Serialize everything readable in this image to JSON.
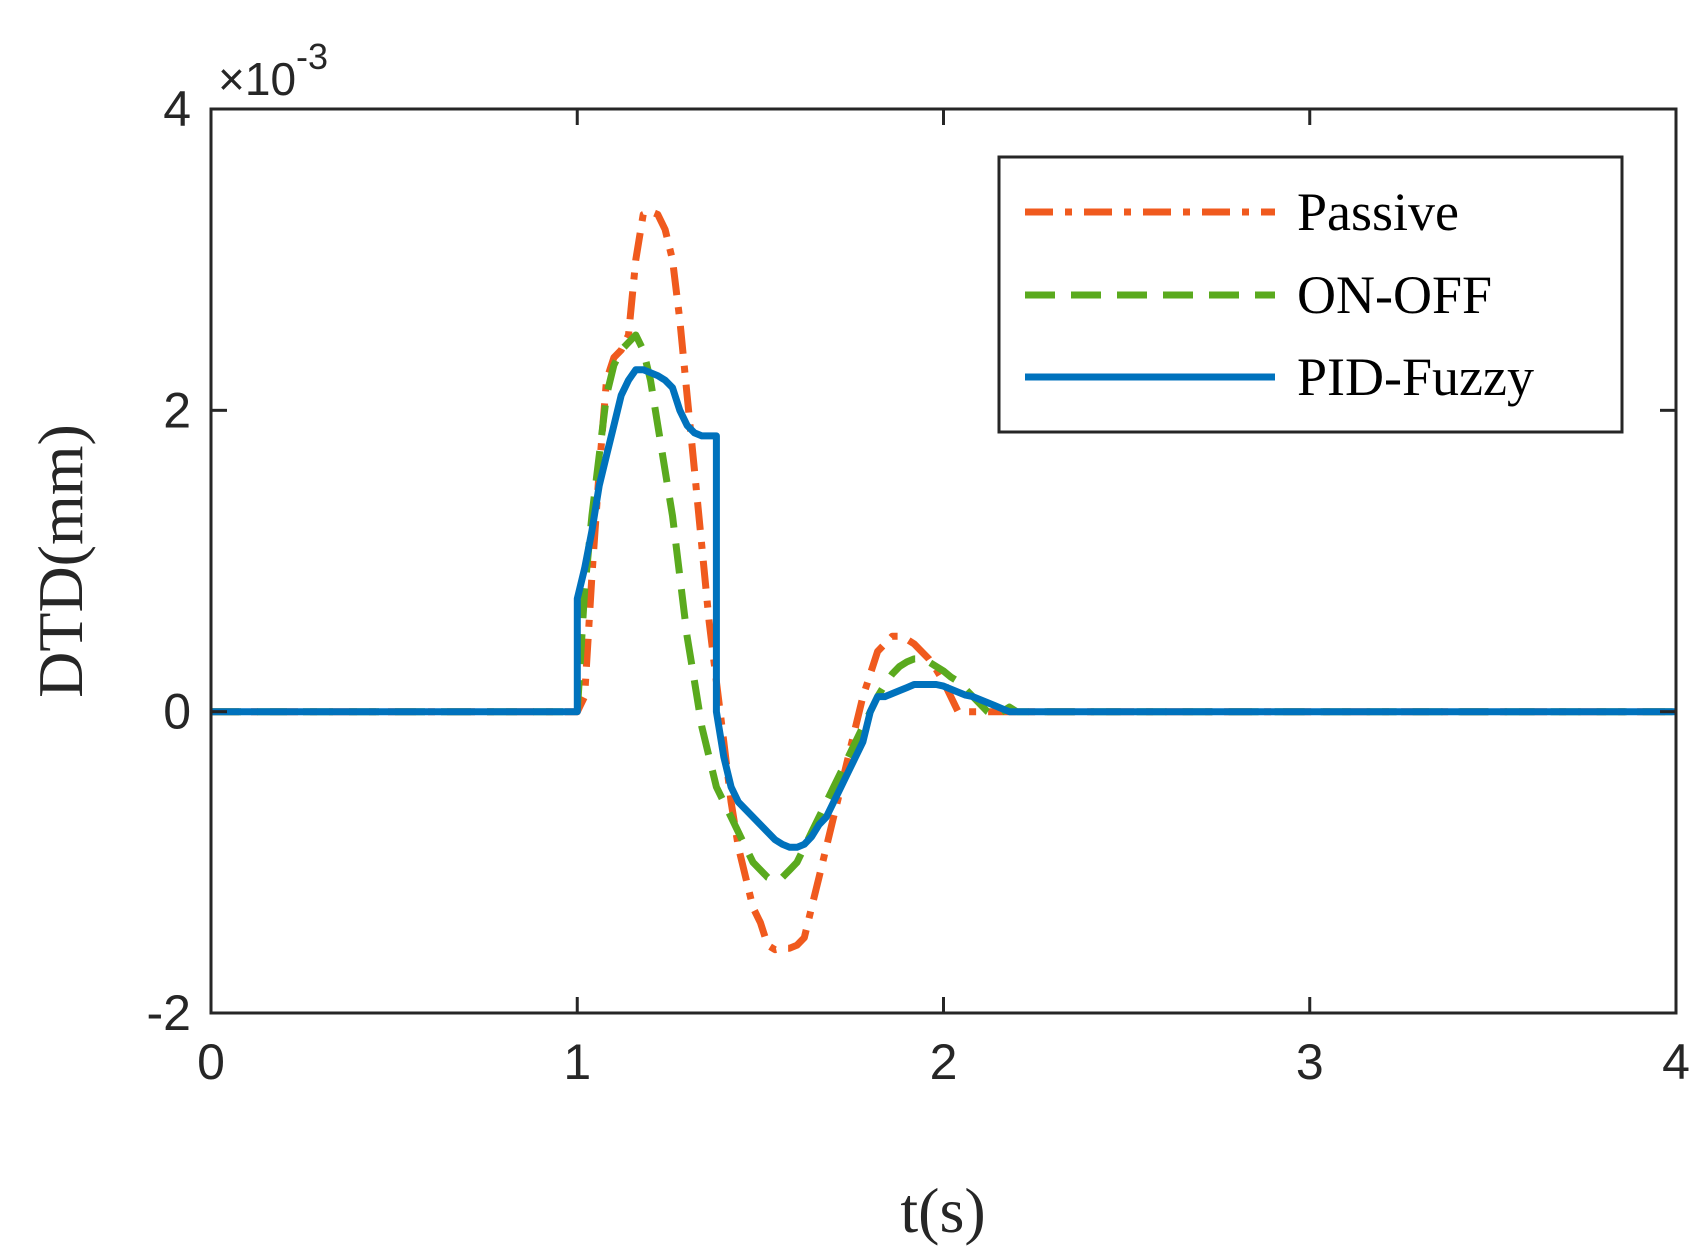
{
  "chart_data": {
    "type": "line",
    "title": "",
    "xlabel": "t(s)",
    "ylabel": "DTD(mm)",
    "xlim": [
      0,
      4
    ],
    "ylim": [
      -2,
      4
    ],
    "xticks": [
      0,
      1,
      2,
      3,
      4
    ],
    "yticks": [
      -2,
      0,
      2,
      4
    ],
    "xtick_labels": [
      "0",
      "1",
      "2",
      "3",
      "4"
    ],
    "ytick_labels": [
      "-2",
      "0",
      "2",
      "4"
    ],
    "y_exponent": {
      "base": "×10",
      "power": "-3"
    },
    "grid": false,
    "legend_position": "top-right",
    "series": [
      {
        "name": "Passive",
        "color": "#f05a1e",
        "style": "dash-dot",
        "x": [
          0,
          1.0,
          1.02,
          1.04,
          1.06,
          1.08,
          1.1,
          1.12,
          1.14,
          1.16,
          1.18,
          1.2,
          1.22,
          1.24,
          1.26,
          1.28,
          1.3,
          1.32,
          1.34,
          1.36,
          1.38,
          1.4,
          1.42,
          1.44,
          1.46,
          1.48,
          1.5,
          1.52,
          1.54,
          1.56,
          1.58,
          1.6,
          1.62,
          1.64,
          1.66,
          1.68,
          1.7,
          1.72,
          1.74,
          1.76,
          1.78,
          1.8,
          1.82,
          1.84,
          1.86,
          1.88,
          1.9,
          1.92,
          1.94,
          1.96,
          1.98,
          2.0,
          2.02,
          2.04,
          2.06,
          2.08,
          2.1,
          2.12,
          2.14,
          2.16,
          2.18,
          2.2,
          2.4,
          2.6,
          2.8,
          3.0,
          3.2,
          3.4,
          3.6,
          3.8,
          4.0
        ],
        "values": [
          0,
          0,
          0.0001,
          0.0009,
          0.0016,
          0.0022,
          0.00235,
          0.0024,
          0.0025,
          0.003,
          0.0033,
          0.00332,
          0.0033,
          0.0032,
          0.003,
          0.0026,
          0.0021,
          0.0016,
          0.0011,
          0.0006,
          0.0002,
          -0.0002,
          -0.0006,
          -0.0009,
          -0.0011,
          -0.0013,
          -0.0014,
          -0.00155,
          -0.00158,
          -0.00157,
          -0.00157,
          -0.00155,
          -0.0015,
          -0.0013,
          -0.0011,
          -0.0009,
          -0.0007,
          -0.0005,
          -0.0003,
          -0.0001,
          0.0001,
          0.00025,
          0.0004,
          0.00045,
          0.0005,
          0.0005,
          0.00048,
          0.00045,
          0.0004,
          0.00035,
          0.00028,
          0.0002,
          0.0001,
          0.0,
          0.0,
          0.0,
          0.0,
          0.0,
          0.0,
          0.0,
          0.0,
          0.0,
          0.0,
          0.0,
          0.0,
          0.0,
          0.0,
          0.0,
          0.0,
          0.0,
          0.0
        ]
      },
      {
        "name": "ON-OFF",
        "color": "#5aaa1e",
        "style": "dashed",
        "x": [
          0,
          1.0,
          1.02,
          1.04,
          1.06,
          1.08,
          1.1,
          1.12,
          1.14,
          1.16,
          1.18,
          1.2,
          1.22,
          1.24,
          1.26,
          1.28,
          1.3,
          1.32,
          1.34,
          1.36,
          1.38,
          1.4,
          1.42,
          1.44,
          1.46,
          1.48,
          1.5,
          1.52,
          1.54,
          1.56,
          1.58,
          1.6,
          1.62,
          1.64,
          1.66,
          1.68,
          1.7,
          1.72,
          1.74,
          1.76,
          1.78,
          1.8,
          1.82,
          1.84,
          1.86,
          1.88,
          1.9,
          1.92,
          1.94,
          1.96,
          1.98,
          2.0,
          2.02,
          2.04,
          2.06,
          2.08,
          2.1,
          2.12,
          2.14,
          2.16,
          2.18,
          2.2,
          2.4,
          2.6,
          2.8,
          3.0,
          3.2,
          3.4,
          3.6,
          3.8,
          4.0
        ],
        "values": [
          0,
          0,
          0.0008,
          0.0013,
          0.0017,
          0.0021,
          0.0023,
          0.0024,
          0.00245,
          0.0025,
          0.0024,
          0.0022,
          0.0019,
          0.0016,
          0.0013,
          0.0009,
          0.0005,
          0.0002,
          -0.0001,
          -0.0003,
          -0.0005,
          -0.0006,
          -0.0007,
          -0.0008,
          -0.0009,
          -0.001,
          -0.00105,
          -0.0011,
          -0.00112,
          -0.0011,
          -0.00105,
          -0.001,
          -0.0009,
          -0.0008,
          -0.0007,
          -0.0006,
          -0.0005,
          -0.0004,
          -0.0003,
          -0.0002,
          -0.0001,
          0.0,
          0.0001,
          0.00018,
          0.00025,
          0.0003,
          0.00033,
          0.00035,
          0.00035,
          0.00033,
          0.0003,
          0.00027,
          0.00023,
          0.0002,
          0.00015,
          0.0001,
          5e-05,
          0.0,
          -3e-05,
          0.0,
          3e-05,
          0.0,
          0.0,
          0.0,
          0.0,
          0.0,
          0.0,
          0.0,
          0.0,
          0.0,
          0.0
        ]
      },
      {
        "name": "PID-Fuzzy",
        "color": "#0072bd",
        "style": "solid",
        "x": [
          0,
          1.0,
          1.0,
          1.02,
          1.04,
          1.06,
          1.08,
          1.1,
          1.12,
          1.14,
          1.16,
          1.18,
          1.2,
          1.22,
          1.24,
          1.26,
          1.28,
          1.3,
          1.32,
          1.34,
          1.36,
          1.38,
          1.38,
          1.4,
          1.42,
          1.44,
          1.46,
          1.48,
          1.5,
          1.52,
          1.54,
          1.56,
          1.58,
          1.6,
          1.62,
          1.64,
          1.66,
          1.68,
          1.7,
          1.72,
          1.74,
          1.76,
          1.78,
          1.8,
          1.82,
          1.84,
          1.86,
          1.88,
          1.9,
          1.92,
          1.94,
          1.96,
          1.98,
          2.0,
          2.02,
          2.04,
          2.06,
          2.08,
          2.1,
          2.12,
          2.14,
          2.16,
          2.18,
          2.2,
          4.0
        ],
        "values": [
          0,
          0,
          0.00075,
          0.00095,
          0.0012,
          0.0015,
          0.0017,
          0.0019,
          0.0021,
          0.0022,
          0.00227,
          0.00227,
          0.00225,
          0.00223,
          0.0022,
          0.00215,
          0.002,
          0.0019,
          0.00185,
          0.00183,
          0.00183,
          0.00183,
          0.0,
          -0.0003,
          -0.0005,
          -0.0006,
          -0.00065,
          -0.0007,
          -0.00075,
          -0.0008,
          -0.00085,
          -0.00088,
          -0.0009,
          -0.0009,
          -0.00088,
          -0.00083,
          -0.00075,
          -0.0007,
          -0.0006,
          -0.0005,
          -0.0004,
          -0.0003,
          -0.0002,
          0.0,
          0.0001,
          0.0001,
          0.00012,
          0.00014,
          0.00016,
          0.00018,
          0.00018,
          0.00018,
          0.00018,
          0.00017,
          0.00015,
          0.00013,
          0.00011,
          0.0001,
          8e-05,
          6e-05,
          4e-05,
          2e-05,
          0.0,
          0.0,
          0.0
        ]
      }
    ]
  }
}
